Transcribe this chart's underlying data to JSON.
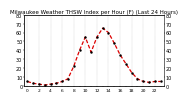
{
  "title": "Milwaukee Weather THSW Index per Hour (F) (Last 24 Hours)",
  "hours": [
    0,
    1,
    2,
    3,
    4,
    5,
    6,
    7,
    8,
    9,
    10,
    11,
    12,
    13,
    14,
    15,
    16,
    17,
    18,
    19,
    20,
    21,
    22,
    23
  ],
  "values": [
    5,
    3,
    2,
    1,
    2,
    3,
    5,
    8,
    22,
    40,
    55,
    38,
    55,
    65,
    60,
    48,
    35,
    25,
    15,
    8,
    5,
    4,
    5,
    5
  ],
  "line_color": "#dd0000",
  "marker_color": "#000000",
  "bg_color": "#ffffff",
  "grid_color": "#888888",
  "ylim": [
    0,
    80
  ],
  "yticks": [
    0,
    10,
    20,
    30,
    40,
    50,
    60,
    70,
    80
  ],
  "ylabel_fontsize": 3.5,
  "xlabel_fontsize": 3.2,
  "title_fontsize": 4.0,
  "linewidth": 0.9,
  "markersize": 1.5
}
